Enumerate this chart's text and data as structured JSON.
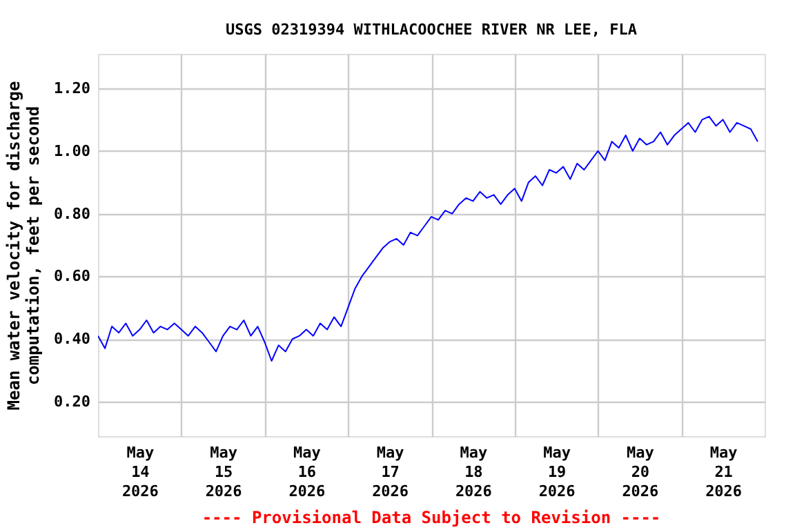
{
  "chart_data": {
    "type": "line",
    "title": "USGS 02319394 WITHLACOOCHEE RIVER NR LEE, FLA",
    "ylabel": "Mean water velocity for discharge computation, feet per second",
    "annotations": [
      "---- Provisional Data Subject to Revision ----"
    ],
    "x": [
      "2026-05-14T00:00",
      "2026-05-14T02:00",
      "2026-05-14T04:00",
      "2026-05-14T06:00",
      "2026-05-14T08:00",
      "2026-05-14T10:00",
      "2026-05-14T12:00",
      "2026-05-14T14:00",
      "2026-05-14T16:00",
      "2026-05-14T18:00",
      "2026-05-14T20:00",
      "2026-05-14T22:00",
      "2026-05-15T00:00",
      "2026-05-15T02:00",
      "2026-05-15T04:00",
      "2026-05-15T06:00",
      "2026-05-15T08:00",
      "2026-05-15T10:00",
      "2026-05-15T12:00",
      "2026-05-15T14:00",
      "2026-05-15T16:00",
      "2026-05-15T18:00",
      "2026-05-15T20:00",
      "2026-05-15T22:00",
      "2026-05-16T00:00",
      "2026-05-16T02:00",
      "2026-05-16T04:00",
      "2026-05-16T06:00",
      "2026-05-16T08:00",
      "2026-05-16T10:00",
      "2026-05-16T12:00",
      "2026-05-16T14:00",
      "2026-05-16T16:00",
      "2026-05-16T18:00",
      "2026-05-16T20:00",
      "2026-05-16T22:00",
      "2026-05-17T00:00",
      "2026-05-17T02:00",
      "2026-05-17T04:00",
      "2026-05-17T06:00",
      "2026-05-17T08:00",
      "2026-05-17T10:00",
      "2026-05-17T12:00",
      "2026-05-17T14:00",
      "2026-05-17T16:00",
      "2026-05-17T18:00",
      "2026-05-17T20:00",
      "2026-05-17T22:00",
      "2026-05-18T00:00",
      "2026-05-18T02:00",
      "2026-05-18T04:00",
      "2026-05-18T06:00",
      "2026-05-18T08:00",
      "2026-05-18T10:00",
      "2026-05-18T12:00",
      "2026-05-18T14:00",
      "2026-05-18T16:00",
      "2026-05-18T18:00",
      "2026-05-18T20:00",
      "2026-05-18T22:00",
      "2026-05-19T00:00",
      "2026-05-19T02:00",
      "2026-05-19T04:00",
      "2026-05-19T06:00",
      "2026-05-19T08:00",
      "2026-05-19T10:00",
      "2026-05-19T12:00",
      "2026-05-19T14:00",
      "2026-05-19T16:00",
      "2026-05-19T18:00",
      "2026-05-19T20:00",
      "2026-05-19T22:00",
      "2026-05-20T00:00",
      "2026-05-20T02:00",
      "2026-05-20T04:00",
      "2026-05-20T06:00",
      "2026-05-20T08:00",
      "2026-05-20T10:00",
      "2026-05-20T12:00",
      "2026-05-20T14:00",
      "2026-05-20T16:00",
      "2026-05-20T18:00",
      "2026-05-20T20:00",
      "2026-05-20T22:00",
      "2026-05-21T00:00",
      "2026-05-21T02:00",
      "2026-05-21T04:00",
      "2026-05-21T06:00",
      "2026-05-21T08:00",
      "2026-05-21T10:00",
      "2026-05-21T12:00",
      "2026-05-21T14:00",
      "2026-05-21T16:00",
      "2026-05-21T18:00",
      "2026-05-21T20:00",
      "2026-05-21T22:00"
    ],
    "series": [
      {
        "color": "#0000ff",
        "values": [
          0.41,
          0.37,
          0.44,
          0.42,
          0.45,
          0.41,
          0.43,
          0.46,
          0.42,
          0.44,
          0.43,
          0.45,
          0.43,
          0.41,
          0.44,
          0.42,
          0.39,
          0.36,
          0.41,
          0.44,
          0.43,
          0.46,
          0.41,
          0.44,
          0.39,
          0.33,
          0.38,
          0.36,
          0.4,
          0.41,
          0.43,
          0.41,
          0.45,
          0.43,
          0.47,
          0.44,
          0.5,
          0.56,
          0.6,
          0.63,
          0.66,
          0.69,
          0.71,
          0.72,
          0.7,
          0.74,
          0.73,
          0.76,
          0.79,
          0.78,
          0.81,
          0.8,
          0.83,
          0.85,
          0.84,
          0.87,
          0.85,
          0.86,
          0.83,
          0.86,
          0.88,
          0.84,
          0.9,
          0.92,
          0.89,
          0.94,
          0.93,
          0.95,
          0.91,
          0.96,
          0.94,
          0.97,
          1.0,
          0.97,
          1.03,
          1.01,
          1.05,
          1.0,
          1.04,
          1.02,
          1.03,
          1.06,
          1.02,
          1.05,
          1.07,
          1.09,
          1.06,
          1.1,
          1.11,
          1.08,
          1.1,
          1.06,
          1.09,
          1.08,
          1.07,
          1.03
        ]
      }
    ],
    "xlim": [
      "2026-05-14T00:00",
      "2026-05-22T00:00"
    ],
    "xticks": [
      {
        "value": "2026-05-14T12:00",
        "label": "May 14 2026"
      },
      {
        "value": "2026-05-15T00:00",
        "label": null
      },
      {
        "value": "2026-05-15T12:00",
        "label": "May 15 2026"
      },
      {
        "value": "2026-05-16T00:00",
        "label": null
      },
      {
        "value": "2026-05-16T12:00",
        "label": "May 16 2026"
      },
      {
        "value": "2026-05-17T00:00",
        "label": null
      },
      {
        "value": "2026-05-17T12:00",
        "label": "May 17 2026"
      },
      {
        "value": "2026-05-18T00:00",
        "label": null
      },
      {
        "value": "2026-05-18T12:00",
        "label": "May 18 2026"
      },
      {
        "value": "2026-05-19T00:00",
        "label": null
      },
      {
        "value": "2026-05-19T12:00",
        "label": "May 19 2026"
      },
      {
        "value": "2026-05-20T00:00",
        "label": null
      },
      {
        "value": "2026-05-20T12:00",
        "label": "May 20 2026"
      },
      {
        "value": "2026-05-21T00:00",
        "label": null
      },
      {
        "value": "2026-05-21T12:00",
        "label": "May 21 2026"
      }
    ],
    "ylim": [
      0.09,
      1.31
    ],
    "yticks": [
      {
        "value": 0.2,
        "label": "0.20"
      },
      {
        "value": 0.4,
        "label": "0.40"
      },
      {
        "value": 0.6,
        "label": "0.60"
      },
      {
        "value": 0.8,
        "label": "0.80"
      },
      {
        "value": 1.0,
        "label": "1.00"
      },
      {
        "value": 1.2,
        "label": "1.20"
      }
    ],
    "grid": true
  }
}
